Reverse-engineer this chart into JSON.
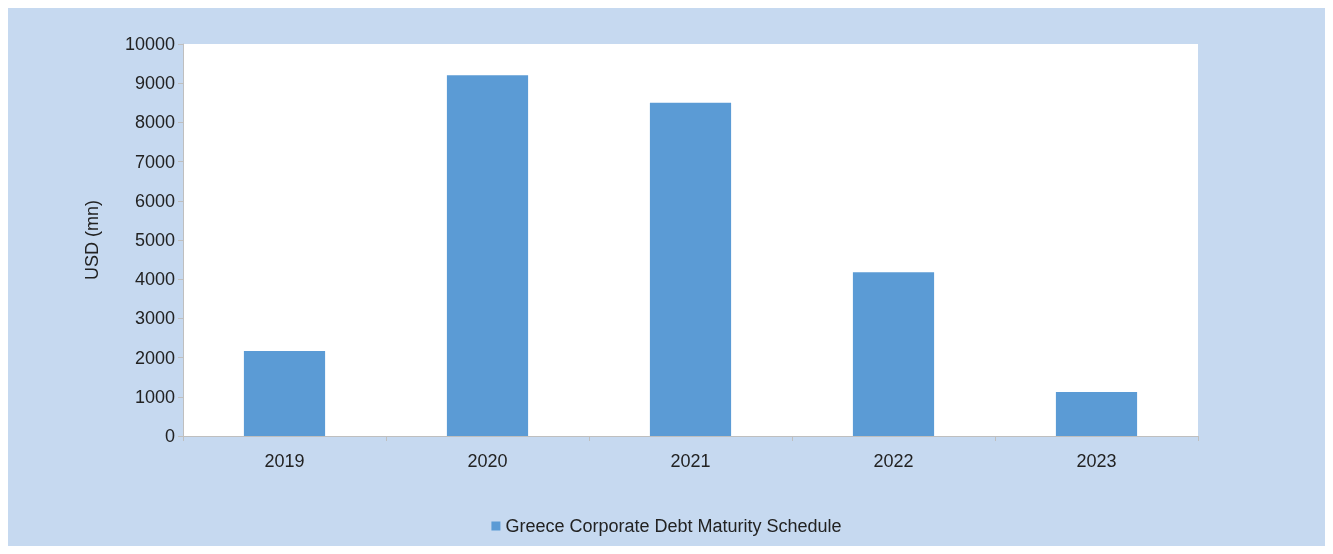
{
  "chart_data": {
    "type": "bar",
    "ylabel": "USD (mn)",
    "categories": [
      "2019",
      "2020",
      "2021",
      "2022",
      "2023"
    ],
    "series": [
      {
        "name": "Greece Corporate Debt Maturity Schedule",
        "color": "#5b9bd5",
        "values": [
          2170,
          9200,
          8500,
          4180,
          1120
        ]
      }
    ],
    "ylim": [
      0,
      10000
    ],
    "yticks": [
      0,
      1000,
      2000,
      3000,
      4000,
      5000,
      6000,
      7000,
      8000,
      9000,
      10000
    ],
    "grid": false,
    "legend": "bottom"
  }
}
